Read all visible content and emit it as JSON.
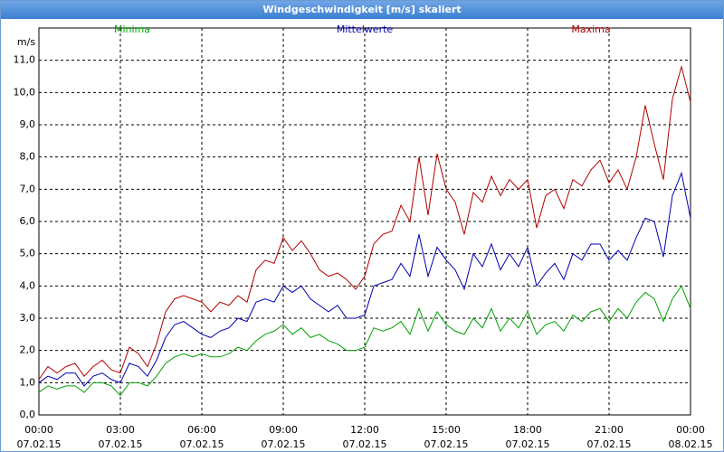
{
  "title": "Windgeschwindigkeit [m/s] skaliert",
  "chart_data": {
    "type": "line",
    "y_unit": "m/s",
    "grid": true,
    "x": [
      0,
      20,
      40,
      60,
      80,
      100,
      120,
      140,
      160,
      180,
      200,
      220,
      240,
      260,
      280,
      300,
      320,
      340,
      360,
      380,
      400,
      420,
      440,
      460,
      480,
      500,
      520,
      540,
      560,
      580,
      600,
      620,
      640,
      660,
      680,
      700,
      720,
      740,
      760,
      780,
      800,
      820,
      840,
      860,
      880,
      900,
      920,
      940,
      960,
      980,
      1000,
      1020,
      1040,
      1060,
      1080,
      1100,
      1120,
      1140,
      1160,
      1180,
      1200,
      1220,
      1240,
      1260,
      1280,
      1300,
      1320,
      1340,
      1360,
      1380,
      1400,
      1420,
      1440
    ],
    "xlim": [
      0,
      1440
    ],
    "xticks": [
      {
        "value": 0,
        "label": "00:00",
        "date": "07.02.15"
      },
      {
        "value": 180,
        "label": "03:00",
        "date": "07.02.15"
      },
      {
        "value": 360,
        "label": "06:00",
        "date": "07.02.15"
      },
      {
        "value": 540,
        "label": "09:00",
        "date": "07.02.15"
      },
      {
        "value": 720,
        "label": "12:00",
        "date": "07.02.15"
      },
      {
        "value": 900,
        "label": "15:00",
        "date": "07.02.15"
      },
      {
        "value": 1080,
        "label": "18:00",
        "date": "07.02.15"
      },
      {
        "value": 1260,
        "label": "21:00",
        "date": "07.02.15"
      },
      {
        "value": 1440,
        "label": "00:00",
        "date": "08.02.15"
      }
    ],
    "ylim": [
      0,
      12
    ],
    "yticks": [
      {
        "value": 0,
        "label": "0,0"
      },
      {
        "value": 1,
        "label": "1,0"
      },
      {
        "value": 2,
        "label": "2,0"
      },
      {
        "value": 3,
        "label": "3,0"
      },
      {
        "value": 4,
        "label": "4,0"
      },
      {
        "value": 5,
        "label": "5,0"
      },
      {
        "value": 6,
        "label": "6,0"
      },
      {
        "value": 7,
        "label": "7,0"
      },
      {
        "value": 8,
        "label": "8,0"
      },
      {
        "value": 9,
        "label": "9,0"
      },
      {
        "value": 10,
        "label": "10,0"
      },
      {
        "value": 11,
        "label": "11,0"
      }
    ],
    "series": [
      {
        "name": "Minima",
        "color": "#00a000",
        "values": [
          0.7,
          0.9,
          0.8,
          0.9,
          0.9,
          0.7,
          1.0,
          1.0,
          0.9,
          0.6,
          1.0,
          1.0,
          0.9,
          1.2,
          1.6,
          1.8,
          1.9,
          1.8,
          1.9,
          1.8,
          1.8,
          1.9,
          2.1,
          2.0,
          2.3,
          2.5,
          2.6,
          2.8,
          2.5,
          2.7,
          2.4,
          2.5,
          2.3,
          2.2,
          2.0,
          2.0,
          2.1,
          2.7,
          2.6,
          2.7,
          2.9,
          2.5,
          3.3,
          2.6,
          3.2,
          2.8,
          2.6,
          2.5,
          3.0,
          2.7,
          3.3,
          2.6,
          3.0,
          2.7,
          3.2,
          2.5,
          2.8,
          2.9,
          2.6,
          3.1,
          2.9,
          3.2,
          3.3,
          2.9,
          3.3,
          3.0,
          3.5,
          3.8,
          3.6,
          2.9,
          3.6,
          4.0,
          3.3
        ]
      },
      {
        "name": "Mittelwerte",
        "color": "#0000b0",
        "values": [
          1.0,
          1.2,
          1.1,
          1.3,
          1.3,
          0.9,
          1.2,
          1.3,
          1.1,
          1.0,
          1.6,
          1.5,
          1.2,
          1.7,
          2.4,
          2.8,
          2.9,
          2.7,
          2.5,
          2.4,
          2.6,
          2.7,
          3.0,
          2.9,
          3.5,
          3.6,
          3.5,
          4.0,
          3.8,
          4.0,
          3.6,
          3.4,
          3.2,
          3.4,
          3.0,
          3.0,
          3.1,
          4.0,
          4.1,
          4.2,
          4.7,
          4.3,
          5.6,
          4.3,
          5.2,
          4.8,
          4.5,
          3.9,
          5.0,
          4.6,
          5.3,
          4.5,
          5.0,
          4.6,
          5.2,
          4.0,
          4.4,
          4.7,
          4.2,
          5.0,
          4.8,
          5.3,
          5.3,
          4.8,
          5.1,
          4.8,
          5.5,
          6.1,
          6.0,
          4.9,
          6.8,
          7.5,
          6.1
        ]
      },
      {
        "name": "Maxima",
        "color": "#b00000",
        "values": [
          1.1,
          1.5,
          1.3,
          1.5,
          1.6,
          1.2,
          1.5,
          1.7,
          1.4,
          1.3,
          2.1,
          1.9,
          1.5,
          2.2,
          3.2,
          3.6,
          3.7,
          3.6,
          3.5,
          3.2,
          3.5,
          3.4,
          3.7,
          3.5,
          4.5,
          4.8,
          4.7,
          5.5,
          5.1,
          5.4,
          5.0,
          4.5,
          4.3,
          4.4,
          4.2,
          3.9,
          4.3,
          5.3,
          5.6,
          5.7,
          6.5,
          6.0,
          8.0,
          6.2,
          8.1,
          7.0,
          6.6,
          5.6,
          6.9,
          6.6,
          7.4,
          6.8,
          7.3,
          7.0,
          7.3,
          5.8,
          6.8,
          7.0,
          6.4,
          7.3,
          7.1,
          7.6,
          7.9,
          7.2,
          7.6,
          7.0,
          8.0,
          9.6,
          8.4,
          7.3,
          9.8,
          10.8,
          9.7
        ]
      }
    ]
  }
}
